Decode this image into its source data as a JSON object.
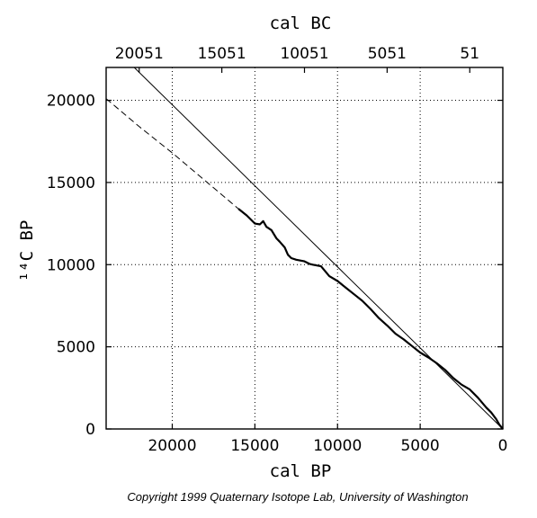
{
  "chart_data": {
    "type": "line",
    "title": "",
    "xlabel": "cal BP",
    "ylabel": "¹⁴C BP",
    "x2label": "cal BC",
    "xlim": [
      24000,
      0
    ],
    "ylim": [
      0,
      22000
    ],
    "x_reversed": true,
    "grid": true,
    "grid_style": "dotted",
    "x_ticks": [
      20000,
      15000,
      10000,
      5000,
      0
    ],
    "x_tick_labels": [
      "20000",
      "15000",
      "10000",
      "5000",
      "0"
    ],
    "y_ticks": [
      0,
      5000,
      10000,
      15000,
      20000
    ],
    "y_tick_labels": [
      "0",
      "5000",
      "10000",
      "15000",
      "20000"
    ],
    "x2_ticks": [
      22000,
      17000,
      12000,
      7000,
      2000
    ],
    "x2_tick_labels": [
      "20051",
      "15051",
      "10051",
      "5051",
      "51"
    ],
    "series": [
      {
        "style": "solid-thick",
        "x": [
          16000,
          15500,
          15000,
          14700,
          14500,
          14300,
          14000,
          13700,
          13500,
          13200,
          13000,
          12800,
          12500,
          12000,
          11700,
          11500,
          11000,
          10500,
          10000,
          9500,
          9000,
          8500,
          8000,
          7500,
          7000,
          6500,
          6000,
          5500,
          5000,
          4500,
          4000,
          3500,
          3000,
          2500,
          2000,
          1500,
          1000,
          700,
          400,
          200,
          0
        ],
        "y": [
          13400,
          13000,
          12500,
          12450,
          12650,
          12300,
          12100,
          11600,
          11400,
          11050,
          10600,
          10400,
          10300,
          10200,
          10050,
          10000,
          9900,
          9300,
          9000,
          8600,
          8200,
          7800,
          7300,
          6750,
          6300,
          5800,
          5450,
          5050,
          4650,
          4350,
          4000,
          3600,
          3100,
          2700,
          2400,
          1900,
          1300,
          1000,
          600,
          250,
          0
        ]
      },
      {
        "style": "dashed",
        "x": [
          24000,
          22000,
          20000,
          18000,
          16000
        ],
        "y": [
          20100,
          18400,
          16800,
          15100,
          13400
        ]
      },
      {
        "style": "reference-line",
        "x": [
          22300,
          0
        ],
        "y": [
          22000,
          0
        ]
      }
    ]
  },
  "copyright": "Copyright 1999 Quaternary Isotope Lab, University of Washington"
}
